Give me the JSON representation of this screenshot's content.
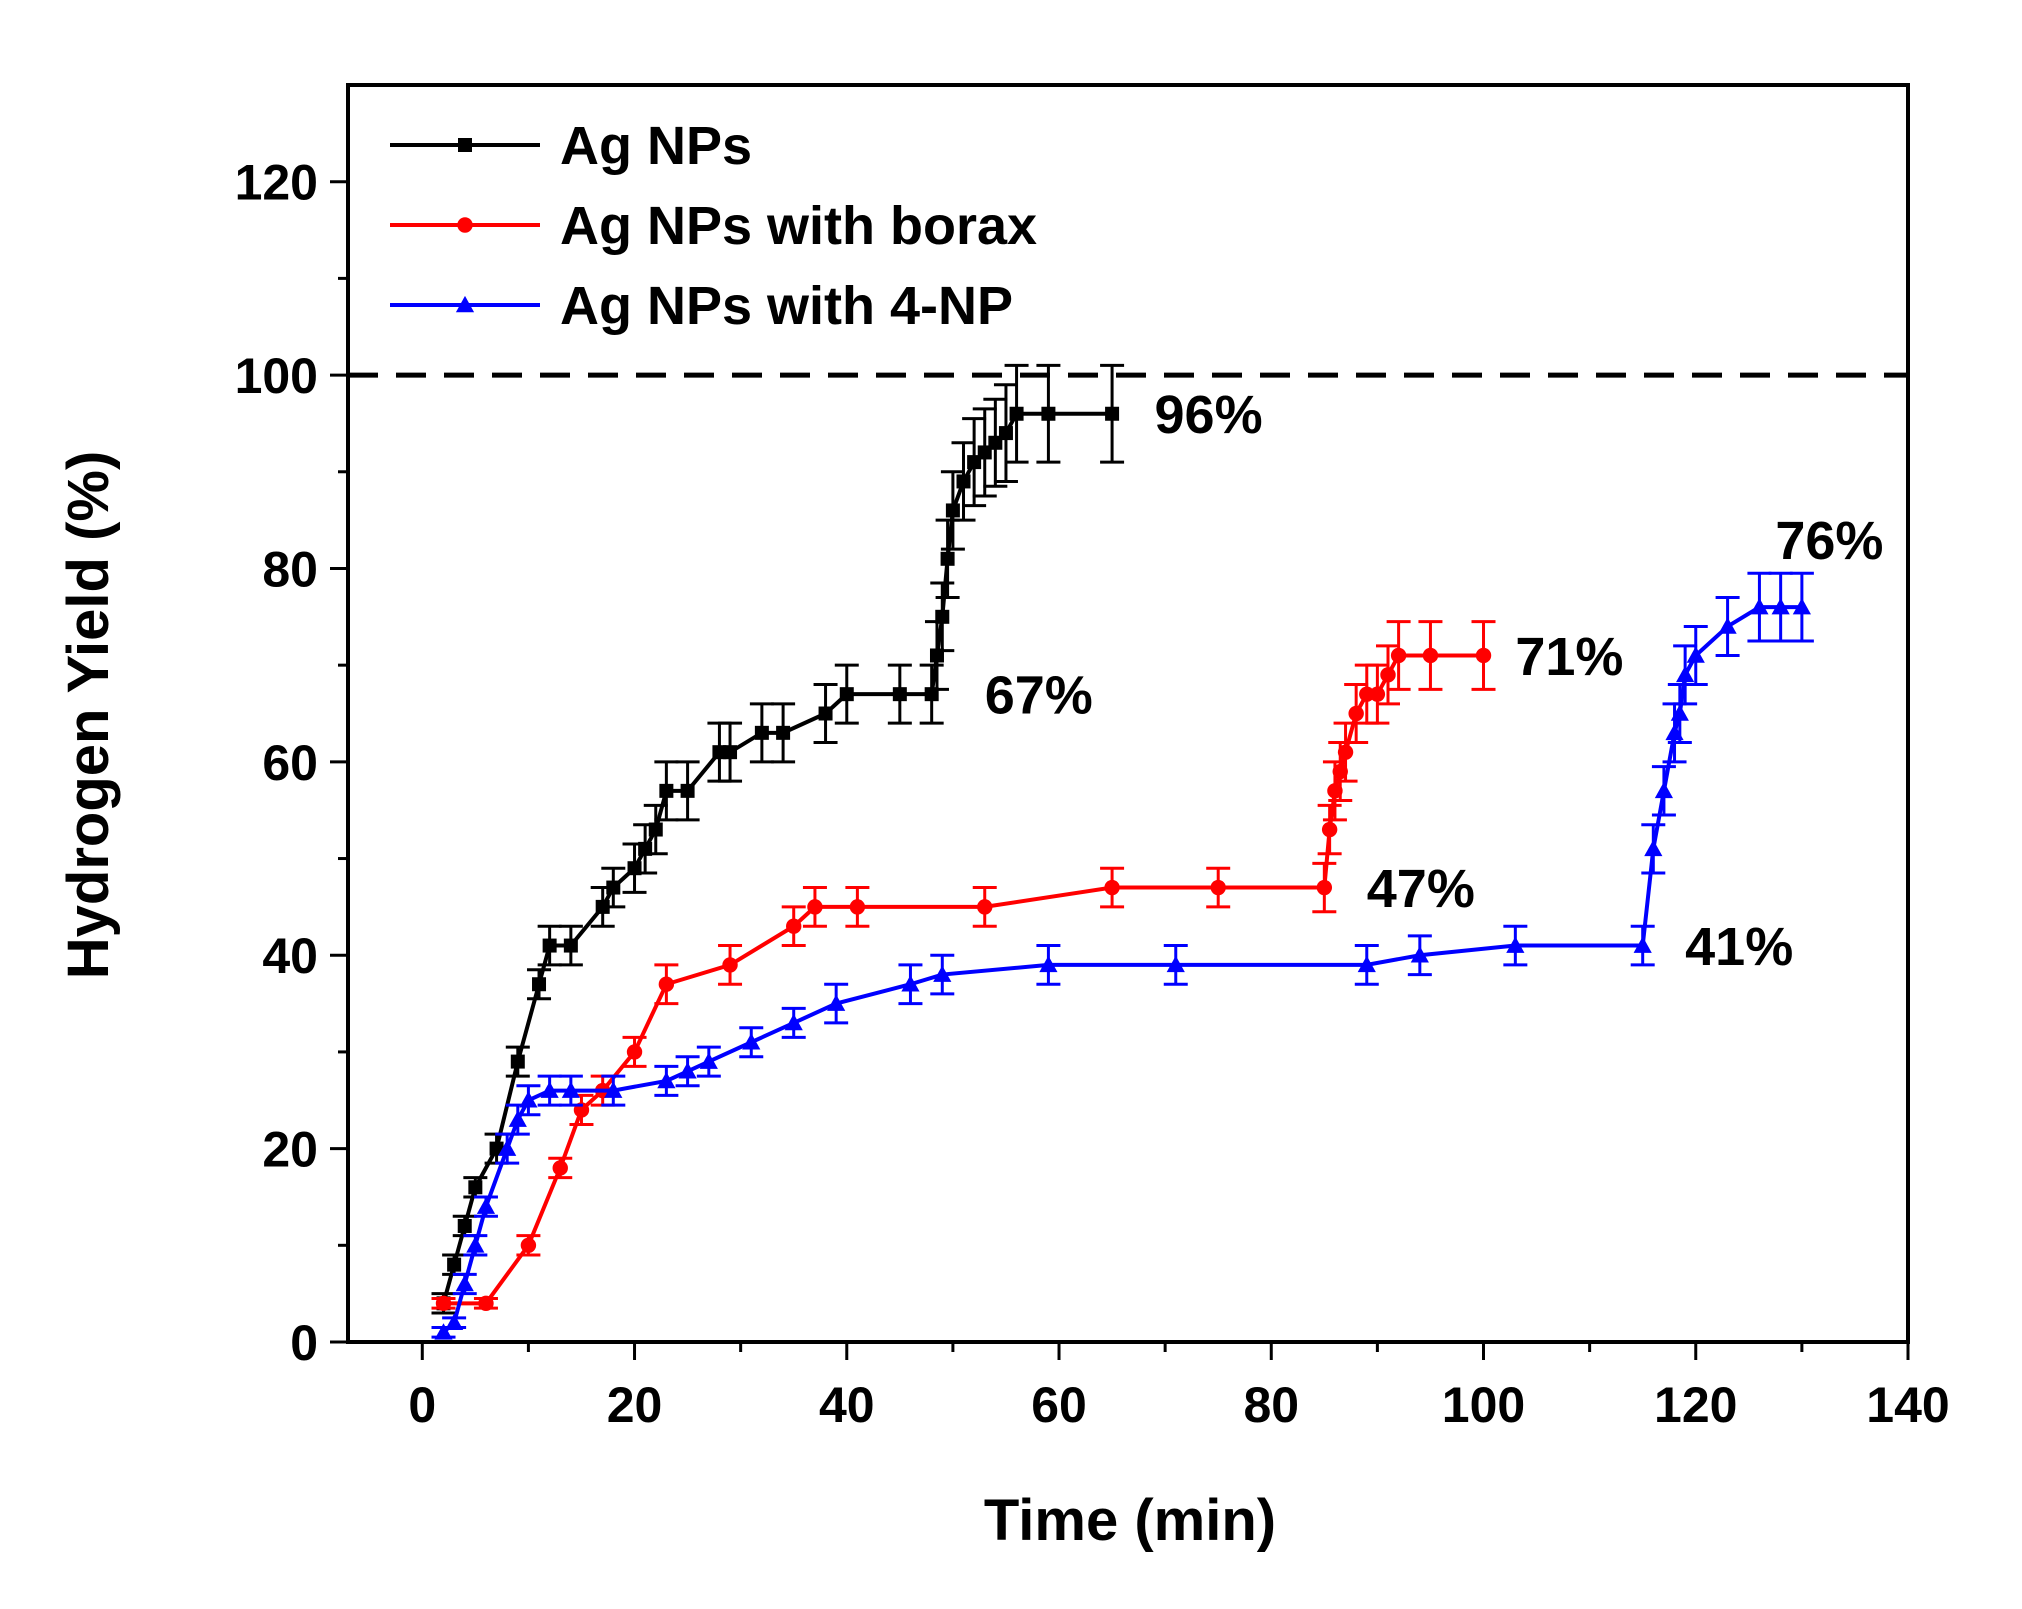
{
  "chart_data": {
    "type": "line",
    "title": "",
    "xlabel": "Time (min)",
    "ylabel": "Hydrogen Yield (%)",
    "xlim": [
      -7,
      140
    ],
    "ylim": [
      0,
      130
    ],
    "xticks": [
      0,
      20,
      40,
      60,
      80,
      100,
      120,
      140
    ],
    "yticks": [
      0,
      20,
      40,
      60,
      80,
      100,
      120
    ],
    "reference_line": {
      "y": 100,
      "style": "dashed"
    },
    "legend_position": "top-left",
    "series": [
      {
        "name": "Ag NPs",
        "color": "#000000",
        "marker": "square",
        "x": [
          2,
          3,
          4,
          5,
          7,
          9,
          11,
          12,
          14,
          17,
          18,
          20,
          21,
          22,
          23,
          25,
          28,
          29,
          32,
          34,
          38,
          40,
          45,
          48,
          48.5,
          49,
          49.5,
          50,
          51,
          52,
          53,
          54,
          55,
          56,
          59,
          65
        ],
        "y": [
          4,
          8,
          12,
          16,
          20,
          29,
          37,
          41,
          41,
          45,
          47,
          49,
          51,
          53,
          57,
          57,
          61,
          61,
          63,
          63,
          65,
          67,
          67,
          67,
          71,
          75,
          81,
          86,
          89,
          91,
          92,
          93,
          94,
          96,
          96,
          96
        ],
        "err": [
          1,
          1,
          1,
          1,
          1.5,
          1.5,
          1.5,
          2,
          2,
          2,
          2,
          2.5,
          2.5,
          2.5,
          3,
          3,
          3,
          3,
          3,
          3,
          3,
          3,
          3,
          3,
          3.5,
          3.5,
          4,
          4,
          4,
          4.5,
          4.5,
          4.5,
          5,
          5,
          5,
          5
        ]
      },
      {
        "name": "Ag NPs with borax",
        "color": "#ff0000",
        "marker": "circle",
        "x": [
          2,
          6,
          10,
          13,
          15,
          17,
          20,
          23,
          29,
          35,
          37,
          41,
          53,
          65,
          75,
          85,
          85.5,
          86,
          86.5,
          87,
          88,
          89,
          90,
          91,
          92,
          95,
          100
        ],
        "y": [
          4,
          4,
          10,
          18,
          24,
          26,
          30,
          37,
          39,
          43,
          45,
          45,
          45,
          47,
          47,
          47,
          53,
          57,
          59,
          61,
          65,
          67,
          67,
          69,
          71,
          71,
          71
        ],
        "err": [
          0.5,
          0.5,
          1,
          1,
          1.5,
          1.5,
          1.5,
          2,
          2,
          2,
          2,
          2,
          2,
          2,
          2,
          2.5,
          2.5,
          3,
          3,
          3,
          3,
          3,
          3,
          3,
          3.5,
          3.5,
          3.5
        ]
      },
      {
        "name": "Ag NPs with 4-NP",
        "color": "#0000ff",
        "marker": "triangle",
        "x": [
          2,
          3,
          4,
          5,
          6,
          8,
          9,
          10,
          12,
          14,
          18,
          23,
          25,
          27,
          31,
          35,
          39,
          46,
          49,
          59,
          71,
          89,
          94,
          103,
          115,
          116,
          117,
          118,
          118.5,
          119,
          120,
          123,
          126,
          128,
          130
        ],
        "y": [
          1,
          2,
          6,
          10,
          14,
          20,
          23,
          25,
          26,
          26,
          26,
          27,
          28,
          29,
          31,
          33,
          35,
          37,
          38,
          39,
          39,
          39,
          40,
          41,
          41,
          51,
          57,
          63,
          65,
          69,
          71,
          74,
          76,
          76,
          76
        ],
        "err": [
          0.5,
          0.5,
          1,
          1,
          1,
          1.5,
          1.5,
          1.5,
          1.5,
          1.5,
          1.5,
          1.5,
          1.5,
          1.5,
          1.5,
          1.5,
          2,
          2,
          2,
          2,
          2,
          2,
          2,
          2,
          2,
          2.5,
          2.5,
          3,
          3,
          3,
          3,
          3,
          3.5,
          3.5,
          3.5
        ]
      }
    ],
    "annotations": [
      {
        "text": "96%",
        "x": 69,
        "y": 94
      },
      {
        "text": "67%",
        "x": 53,
        "y": 65
      },
      {
        "text": "71%",
        "x": 103,
        "y": 69
      },
      {
        "text": "47%",
        "x": 89,
        "y": 45
      },
      {
        "text": "76%",
        "x": 127.5,
        "y": 81
      },
      {
        "text": "41%",
        "x": 119,
        "y": 39
      }
    ]
  }
}
